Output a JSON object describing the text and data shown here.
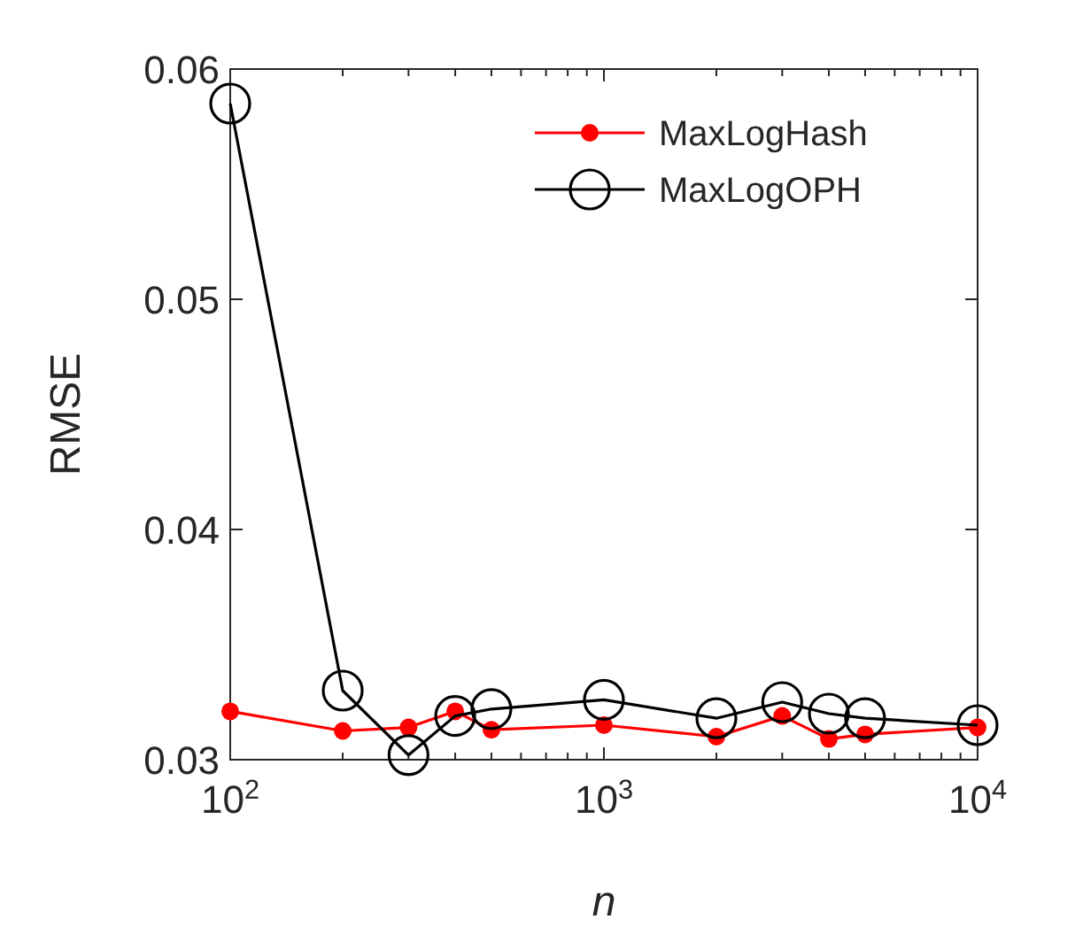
{
  "chart_data": {
    "type": "line",
    "xlabel": "n",
    "ylabel": "RMSE",
    "log": "x",
    "xlim": [
      100,
      10000
    ],
    "xticks": [
      {
        "value": 100,
        "label": "10$^{2}$"
      },
      {
        "value": 1000,
        "label": "10$^{3}$"
      },
      {
        "value": 10000,
        "label": "10$^{4}$"
      }
    ],
    "ylim": [
      0.03,
      0.06
    ],
    "yticks": [
      {
        "value": 0.03,
        "label": "0.03"
      },
      {
        "value": 0.04,
        "label": "0.04"
      },
      {
        "value": 0.05,
        "label": "0.05"
      },
      {
        "value": 0.06,
        "label": "0.06"
      }
    ],
    "grid": false,
    "legend": "top right",
    "x": [
      100,
      200,
      300,
      400,
      500,
      1000,
      2000,
      3000,
      4000,
      5000,
      10000
    ],
    "series": [
      {
        "name": "MaxLogHash",
        "color": "#ff0000",
        "marker": "circle",
        "values": [
          0.0321,
          0.03125,
          0.0314,
          0.0321,
          0.0313,
          0.0315,
          0.031,
          0.0319,
          0.0309,
          0.0311,
          0.0314
        ]
      },
      {
        "name": "MaxLogOPH",
        "color": "#000000",
        "marker": "open-circle",
        "values": [
          0.0585,
          0.033,
          0.0302,
          0.0319,
          0.0322,
          0.0326,
          0.0318,
          0.0325,
          0.032,
          0.0318,
          0.0315
        ]
      }
    ]
  }
}
